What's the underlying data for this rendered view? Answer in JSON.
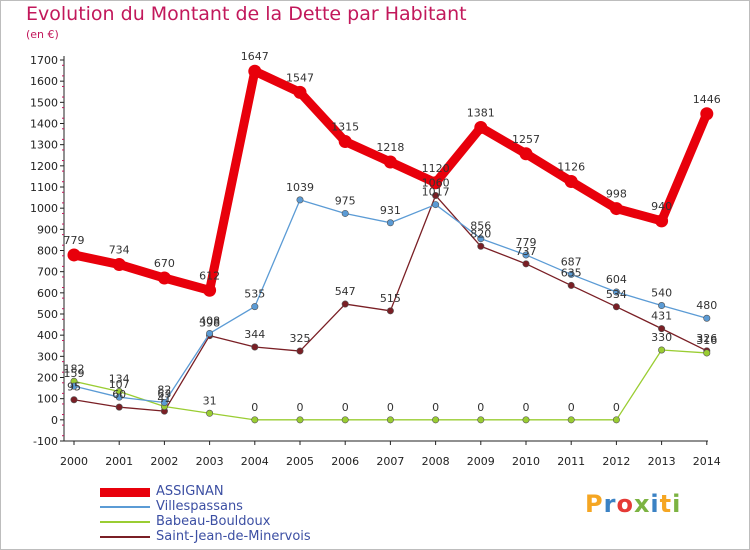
{
  "title": "Evolution du Montant de la Dette par Habitant",
  "subtitle": "(en €)",
  "logo": {
    "letters": [
      "P",
      "r",
      "o",
      "x",
      "i",
      "t",
      "i"
    ],
    "colors": [
      "#f5a623",
      "#3b82c4",
      "#e53935",
      "#7cb342",
      "#3b82c4",
      "#f5a623",
      "#7cb342"
    ]
  },
  "chart_data": {
    "type": "line",
    "x": [
      "2000",
      "2001",
      "2002",
      "2003",
      "2004",
      "2005",
      "2006",
      "2007",
      "2008",
      "2009",
      "2010",
      "2011",
      "2012",
      "2013",
      "2014"
    ],
    "ylim": [
      -100,
      1700
    ],
    "yticks": [
      "-100",
      "0",
      "100",
      "200",
      "300",
      "400",
      "500",
      "600",
      "700",
      "800",
      "900",
      "1000",
      "1100",
      "1200",
      "1300",
      "1400",
      "1500",
      "1600",
      "1700"
    ],
    "grid": false,
    "legend_position": "bottom-left",
    "series": [
      {
        "name": "ASSIGNAN",
        "color": "#e8000b",
        "values": [
          779,
          734,
          670,
          612,
          1647,
          1547,
          1315,
          1218,
          1120,
          1381,
          1257,
          1126,
          998,
          940,
          1446
        ],
        "labels": [
          "779",
          "734",
          "670",
          "612",
          "1647",
          "1547",
          "1315",
          "1218",
          "1120",
          "1381",
          "1257",
          "1126",
          "998",
          "940",
          "1446"
        ]
      },
      {
        "name": "Villespassans",
        "color": "#5b9bd5",
        "values": [
          159,
          107,
          82,
          408,
          535,
          1039,
          975,
          931,
          1017,
          856,
          779,
          687,
          604,
          540,
          480
        ],
        "labels": [
          "159",
          "107",
          "82",
          "408",
          "535",
          "1039",
          "975",
          "931",
          "1017",
          "856",
          "779",
          "687",
          "604",
          "540",
          "480"
        ]
      },
      {
        "name": "Babeau-Bouldoux",
        "color": "#9acd32",
        "values": [
          182,
          134,
          63,
          31,
          0,
          0,
          0,
          0,
          0,
          0,
          0,
          0,
          0,
          330,
          316
        ],
        "labels": [
          "182",
          "134",
          "63",
          "31",
          "0",
          "0",
          "0",
          "0",
          "0",
          "0",
          "0",
          "0",
          "0",
          "330",
          "316"
        ]
      },
      {
        "name": "Saint-Jean-de-Minervois",
        "color": "#7a1f25",
        "values": [
          95,
          60,
          41,
          398,
          344,
          325,
          547,
          515,
          1060,
          820,
          737,
          635,
          534,
          431,
          326
        ],
        "labels": [
          "95",
          "60",
          "41",
          "398",
          "344",
          "325",
          "547",
          "515",
          "1060",
          "820",
          "737",
          "635",
          "534",
          "431",
          "326"
        ]
      }
    ]
  }
}
